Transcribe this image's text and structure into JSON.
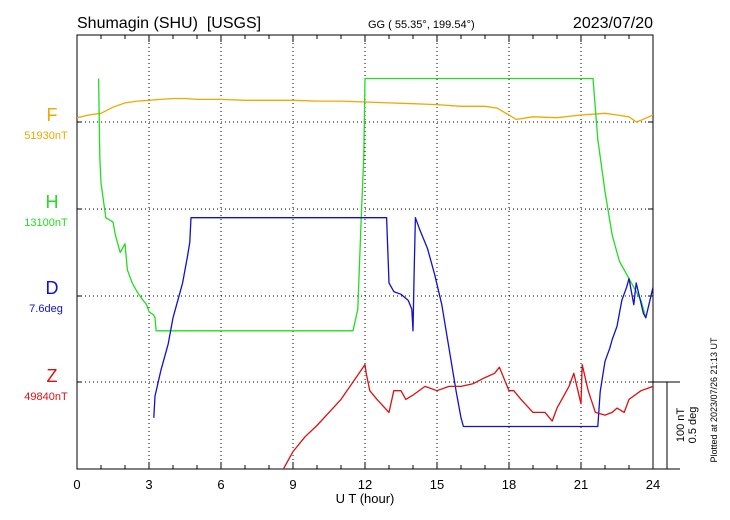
{
  "header": {
    "station": "Shumagin (SHU)  [USGS]",
    "coords": "GG ( 55.35°, 199.54°)",
    "date": "2023/07/20"
  },
  "side_note": "Plotted at 2023/07/26 21:13 UT",
  "scale_bar": {
    "nt": "100 nT",
    "deg": "0.5 deg"
  },
  "chart_data": {
    "type": "line",
    "xlabel": "U T (hour)",
    "xlim": [
      0,
      24
    ],
    "x_ticks": [
      "0",
      "3",
      "6",
      "9",
      "12",
      "15",
      "18",
      "21",
      "24"
    ],
    "grid": true,
    "channels": [
      {
        "letter": "F",
        "baseline": "51930nT",
        "color": "#f0a800"
      },
      {
        "letter": "H",
        "baseline": "13100nT",
        "color": "#22dd22"
      },
      {
        "letter": "D",
        "baseline": "7.6deg",
        "color": "#1010d0"
      },
      {
        "letter": "Z",
        "baseline": "49840nT",
        "color": "#dd1010"
      }
    ],
    "series": [
      {
        "name": "F",
        "unit": "nT offset from baseline",
        "color": "#f0a800",
        "x": [
          0,
          0.5,
          1,
          1.5,
          2,
          2.5,
          3,
          3.5,
          4,
          4.5,
          5,
          5.5,
          6,
          7,
          8,
          9,
          10,
          11,
          12,
          13,
          14,
          15,
          16,
          17,
          17.5,
          18,
          18.3,
          19,
          20,
          21,
          21.5,
          22,
          22.5,
          23,
          23.3,
          23.5,
          24
        ],
        "y": [
          5,
          8,
          10,
          17,
          22,
          24,
          25,
          26,
          27,
          27,
          26,
          26,
          26,
          25,
          25,
          25,
          24,
          24,
          23,
          22,
          21,
          20,
          18,
          18,
          16,
          8,
          3,
          6,
          5,
          8,
          9,
          10,
          8,
          6,
          0,
          2,
          8
        ]
      },
      {
        "name": "H",
        "unit": "nT offset from baseline",
        "color": "#22dd22",
        "x": [
          0.9,
          0.95,
          1,
          1.2,
          1.5,
          1.6,
          1.8,
          2,
          2.1,
          2.3,
          2.5,
          2.7,
          2.9,
          3.0,
          3.2,
          3.25,
          3.3,
          11.5,
          11.7,
          11.85,
          11.95,
          12.0,
          21.5,
          21.7,
          22,
          22.3,
          22.6,
          22.9,
          23.2,
          23.5,
          23.7
        ],
        "y": [
          150,
          60,
          30,
          -10,
          -15,
          -30,
          -50,
          -40,
          -70,
          -85,
          -95,
          -103,
          -110,
          -118,
          -122,
          -125,
          -140,
          -140,
          -115,
          -5,
          60,
          150,
          150,
          80,
          20,
          -30,
          -60,
          -75,
          -90,
          -105,
          -125
        ]
      },
      {
        "name": "D",
        "unit": "nT offset from baseline",
        "color": "#1010d0",
        "x": [
          3.2,
          3.25,
          3.5,
          3.8,
          4,
          4.2,
          4.4,
          4.6,
          4.7,
          4.75,
          12.9,
          13.0,
          13.2,
          13.5,
          13.8,
          13.95,
          14.0,
          14.05,
          14.1,
          14.3,
          14.6,
          14.9,
          15.2,
          15.5,
          15.8,
          16.0,
          16.1,
          21.7,
          21.8,
          22.0,
          22.2,
          22.3,
          22.5,
          22.6,
          22.7,
          22.9,
          23.0,
          23.1,
          23.2,
          23.3,
          23.6,
          23.7,
          24
        ],
        "y": [
          -140,
          -115,
          -85,
          -55,
          -25,
          -5,
          15,
          45,
          62,
          90,
          90,
          15,
          5,
          2,
          -5,
          -15,
          -40,
          30,
          90,
          75,
          55,
          25,
          -10,
          -60,
          -110,
          -140,
          -150,
          -150,
          -110,
          -75,
          -60,
          -50,
          -35,
          -20,
          -5,
          10,
          20,
          5,
          -10,
          15,
          -20,
          -25,
          10
        ]
      },
      {
        "name": "Z",
        "unit": "nT offset from baseline",
        "color": "#dd1010",
        "x": [
          8.6,
          9,
          9.5,
          10,
          10.5,
          11,
          11.5,
          12,
          12.05,
          12.2,
          12.5,
          13,
          13.2,
          13.5,
          13.7,
          14,
          14.5,
          15,
          15.5,
          16,
          16.5,
          17,
          17.4,
          17.6,
          18,
          18.2,
          18.5,
          19,
          19.5,
          19.8,
          20,
          20.2,
          20.5,
          20.7,
          21,
          21.05,
          21.3,
          21.6,
          22,
          22.3,
          22.5,
          22.8,
          23,
          23.5,
          24
        ],
        "y": [
          -100,
          -80,
          -63,
          -50,
          -35,
          -20,
          0,
          20,
          10,
          -10,
          -20,
          -35,
          -10,
          -10,
          -20,
          -15,
          -5,
          -10,
          -5,
          -5,
          -2,
          5,
          10,
          17,
          -10,
          -10,
          -20,
          -35,
          -35,
          -45,
          -30,
          -20,
          -5,
          10,
          -25,
          20,
          -10,
          -35,
          -38,
          -35,
          -30,
          -35,
          -20,
          -10,
          -5
        ]
      }
    ]
  }
}
